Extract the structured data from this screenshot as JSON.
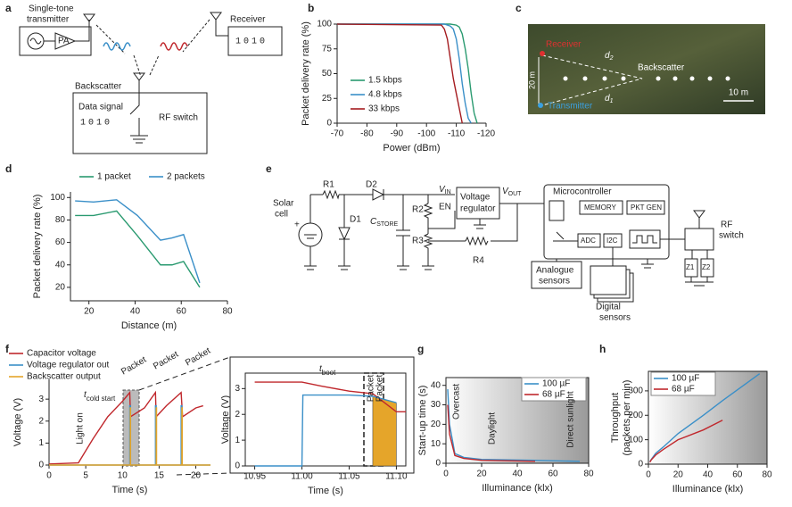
{
  "panel_labels": [
    "a",
    "b",
    "c",
    "d",
    "e",
    "f",
    "g",
    "h"
  ],
  "diagram_a": {
    "transmitter": [
      "Single-tone",
      "transmitter"
    ],
    "pa": "PA",
    "receiver": "Receiver",
    "receiver_bits": "1010",
    "backscatter": "Backscatter",
    "data_signal": "Data signal",
    "data_bits": "1010",
    "rf_switch": "RF switch"
  },
  "map_c": {
    "receiver": "Receiver",
    "transmitter": "Transmitter",
    "backscatter": "Backscatter",
    "d2": {
      "text": "d",
      "sub": "2"
    },
    "d1": {
      "text": "d",
      "sub": "1"
    },
    "height": "20 m",
    "scale": "10 m"
  },
  "circuit_e": {
    "solar_cell": [
      "Solar",
      "cell"
    ],
    "plus": "+",
    "r1": "R1",
    "d2": "D2",
    "d1": "D1",
    "c_store": {
      "text": "C",
      "sub": "STORE"
    },
    "r2": "R2",
    "r3": "R3",
    "r4": "R4",
    "v_in": {
      "text": "V",
      "sub": "IN"
    },
    "en": "EN",
    "regulator": [
      "Voltage",
      "regulator"
    ],
    "v_out": {
      "text": "V",
      "sub": "OUT"
    },
    "microcontroller": "Microcontroller",
    "memory": "MEMORY",
    "pkt_gen": "PKT GEN",
    "adc": "ADC",
    "i2c": "I2C",
    "analogue_sensors": [
      "Analogue",
      "sensors"
    ],
    "digital_sensors": [
      "Digital",
      "sensors"
    ],
    "rf_switch": [
      "RF",
      "switch"
    ],
    "z1": "Z1",
    "z2": "Z2"
  },
  "chart_data": [
    {
      "type": "line",
      "xlabel": "Power (dBm)",
      "ylabel": "Packet delivery rate (%)",
      "xlim": [
        -70,
        -120
      ],
      "xticks": [
        -70,
        -80,
        -90,
        -100,
        -110,
        -120
      ],
      "ylim": [
        0,
        100
      ],
      "yticks": [
        0,
        25,
        50,
        75,
        100
      ],
      "legend": "lower left",
      "frame": false,
      "series": [
        {
          "name": "1.5 kbps",
          "color": "#2a9a70",
          "x": [
            -70,
            -108,
            -110,
            -111,
            -112,
            -113,
            -114,
            -115,
            -116,
            -117
          ],
          "values": [
            100,
            100,
            99,
            97,
            90,
            75,
            55,
            30,
            10,
            0
          ]
        },
        {
          "name": "4.8 kbps",
          "color": "#3a8fc8",
          "x": [
            -70,
            -106,
            -108,
            -109,
            -110,
            -111,
            -112,
            -113,
            -114,
            -115
          ],
          "values": [
            100,
            100,
            98,
            95,
            85,
            65,
            40,
            20,
            5,
            0
          ]
        },
        {
          "name": "33 kbps",
          "color": "#a51c20",
          "x": [
            -70,
            -105,
            -106,
            -107,
            -108,
            -109,
            -110,
            -111,
            -112
          ],
          "values": [
            100,
            99,
            95,
            85,
            65,
            45,
            30,
            15,
            0
          ]
        }
      ]
    },
    {
      "type": "line",
      "xlabel": "Distance (m)",
      "ylabel": "Packet delivery rate (%)",
      "xlim": [
        12,
        80
      ],
      "xticks": [
        20,
        40,
        60,
        80
      ],
      "ylim": [
        8,
        105
      ],
      "yticks": [
        20,
        40,
        60,
        80,
        100
      ],
      "legend": "top",
      "frame": false,
      "series": [
        {
          "name": "1 packet",
          "color": "#2a9a70",
          "x": [
            14,
            22,
            32,
            41,
            51,
            56,
            61,
            68
          ],
          "values": [
            84,
            84,
            88,
            66,
            40,
            40,
            43,
            20
          ]
        },
        {
          "name": "2 packets",
          "color": "#3a8fc8",
          "x": [
            14,
            22,
            32,
            41,
            51,
            56,
            61,
            68
          ],
          "values": [
            97,
            96,
            98,
            84,
            62,
            64,
            67,
            24
          ]
        }
      ]
    },
    {
      "type": "line",
      "xlabel": "Time (s)",
      "ylabel": "Voltage (V)",
      "xlim": [
        0,
        22
      ],
      "xticks": [
        0,
        5,
        10,
        15,
        20
      ],
      "ylim": [
        0,
        3.9
      ],
      "yticks": [
        0,
        1,
        2,
        3
      ],
      "legend": "outside top",
      "frame": false,
      "annotations": [
        "Light on",
        {
          "text": "t",
          "sub": "cold start"
        },
        "Packet",
        "Packet",
        "Packet"
      ],
      "series": [
        {
          "name": "Capacitor voltage",
          "color": "#c0282d",
          "x": [
            0,
            4,
            6,
            8,
            10,
            11,
            11.1,
            13,
            14.5,
            14.6,
            16,
            18,
            18.2,
            20,
            21
          ],
          "values": [
            0.05,
            0.1,
            1.2,
            2.2,
            2.9,
            3.3,
            2.2,
            2.6,
            3.3,
            2.2,
            2.7,
            3.3,
            2.2,
            2.6,
            2.7
          ]
        },
        {
          "name": "Voltage regulator out",
          "color": "#3a8fc8",
          "x": [
            0,
            11,
            11,
            11.1,
            11.1,
            14.5,
            14.5,
            14.6,
            14.6,
            18,
            18,
            18.1,
            18.1,
            22
          ],
          "values": [
            0,
            0,
            2.7,
            2.7,
            0,
            0,
            2.7,
            2.7,
            0,
            0,
            2.7,
            2.7,
            0,
            0
          ]
        },
        {
          "name": "Backscatter output",
          "color": "#e5a52a",
          "x": [
            0,
            11.07,
            11.07,
            11.1,
            11.1,
            14.6,
            14.6,
            14.65,
            14.65,
            18.1,
            18.1,
            18.15,
            18.15,
            22
          ],
          "values": [
            0,
            0,
            2.6,
            2.6,
            0,
            0,
            2.6,
            2.6,
            0,
            0,
            2.6,
            2.6,
            0,
            0
          ]
        }
      ]
    },
    {
      "type": "line",
      "xlabel": "Time (s)",
      "ylabel": "Voltage (V)",
      "xlim": [
        10.94,
        11.11
      ],
      "xticks": [
        10.95,
        {
          "value": 11,
          "label": "11.00"
        },
        11.05,
        {
          "value": 11.1,
          "label": "11.10"
        }
      ],
      "ylim": [
        0,
        3.6
      ],
      "yticks": [
        0,
        1,
        2,
        3
      ],
      "frame": true,
      "annotations": [
        {
          "text": "t",
          "sub": "boot"
        },
        "Packet",
        "Packet"
      ],
      "series": [
        {
          "color": "#e5a52a",
          "fill": true,
          "x": [
            11.075,
            11.075,
            11.1,
            11.1
          ],
          "values": [
            0,
            2.7,
            2.45,
            0
          ]
        },
        {
          "color": "#c0282d",
          "x": [
            10.95,
            11.0,
            11.02,
            11.05,
            11.075,
            11.1,
            11.11
          ],
          "values": [
            3.25,
            3.25,
            3.1,
            2.9,
            2.8,
            2.1,
            2.1
          ]
        },
        {
          "color": "#3a8fc8",
          "x": [
            10.95,
            11.0,
            11.001,
            11.05,
            11.075,
            11.1
          ],
          "values": [
            0,
            0,
            2.75,
            2.75,
            2.7,
            2.45
          ]
        }
      ]
    },
    {
      "type": "line",
      "xlabel": "Illuminance (klx)",
      "ylabel": "Start-up time (s)",
      "xlim": [
        0,
        80
      ],
      "xticks": [
        0,
        20,
        40,
        60,
        80
      ],
      "ylim": [
        0,
        44
      ],
      "yticks": [
        0,
        10,
        20,
        30,
        40
      ],
      "legend": "upper right",
      "frame": true,
      "annotations": [
        "Overcast",
        "Daylight",
        "Direct sunlight"
      ],
      "series": [
        {
          "name": "100 µF",
          "color": "#3a8fc8",
          "x": [
            1,
            2,
            5,
            10,
            20,
            50,
            75
          ],
          "values": [
            38,
            20,
            5,
            3,
            2,
            1.5,
            1
          ]
        },
        {
          "name": "68 µF",
          "color": "#c0282d",
          "x": [
            1,
            2,
            5,
            10,
            20,
            50
          ],
          "values": [
            30,
            15,
            4,
            2.5,
            1.5,
            1
          ]
        }
      ]
    },
    {
      "type": "line",
      "xlabel": "Illuminance (klx)",
      "ylabel": [
        "Throughput",
        "(packets per min)"
      ],
      "xlim": [
        0,
        80
      ],
      "xticks": [
        0,
        20,
        40,
        60,
        80
      ],
      "ylim": [
        0,
        380
      ],
      "yticks": [
        0,
        100,
        200,
        300
      ],
      "legend": "upper left",
      "frame": true,
      "series": [
        {
          "name": "100 µF",
          "color": "#3a8fc8",
          "x": [
            1,
            2,
            5,
            10,
            20,
            37,
            50,
            75
          ],
          "values": [
            10,
            20,
            45,
            70,
            125,
            200,
            260,
            370
          ]
        },
        {
          "name": "68 µF",
          "color": "#c0282d",
          "x": [
            1,
            2,
            5,
            10,
            20,
            37,
            50
          ],
          "values": [
            8,
            18,
            38,
            60,
            100,
            140,
            180
          ]
        }
      ]
    }
  ]
}
